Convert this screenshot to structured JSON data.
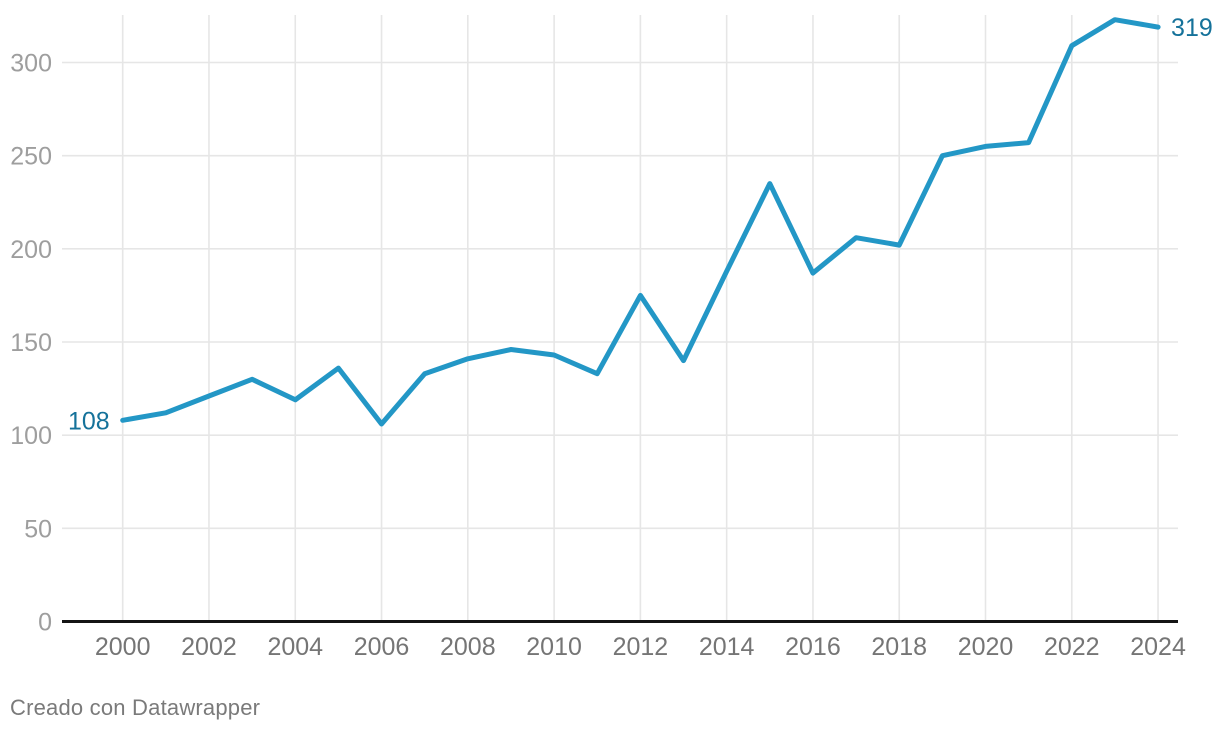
{
  "chart_data": {
    "type": "line",
    "title": "",
    "xlabel": "",
    "ylabel": "",
    "x": [
      2000,
      2001,
      2002,
      2003,
      2004,
      2005,
      2006,
      2007,
      2008,
      2009,
      2010,
      2011,
      2012,
      2013,
      2014,
      2015,
      2016,
      2017,
      2018,
      2019,
      2020,
      2021,
      2022,
      2023,
      2024
    ],
    "values": [
      108,
      112,
      121,
      130,
      119,
      136,
      106,
      133,
      141,
      146,
      143,
      133,
      175,
      140,
      188,
      235,
      187,
      206,
      202,
      250,
      255,
      257,
      309,
      323,
      319
    ],
    "x_tick_labels": [
      "2000",
      "2002",
      "2004",
      "2006",
      "2008",
      "2010",
      "2012",
      "2014",
      "2016",
      "2018",
      "2020",
      "2022",
      "2024"
    ],
    "x_ticks": [
      2000,
      2002,
      2004,
      2006,
      2008,
      2010,
      2012,
      2014,
      2016,
      2018,
      2020,
      2022,
      2024
    ],
    "y_ticks": [
      0,
      50,
      100,
      150,
      200,
      250,
      300
    ],
    "xlim": [
      2000,
      2024
    ],
    "ylim": [
      0,
      325
    ],
    "grid": true,
    "legend": "none",
    "first_point_label": "108",
    "last_point_label": "319",
    "line_color": "#2397c6",
    "value_label_color": "#15729a",
    "gridline_color": "#e6e6e6",
    "axis_line_color": "#141414",
    "y_tick_color": "#9e9e9e",
    "x_tick_color": "#757575"
  },
  "footer": {
    "attribution": "Creado con Datawrapper"
  }
}
